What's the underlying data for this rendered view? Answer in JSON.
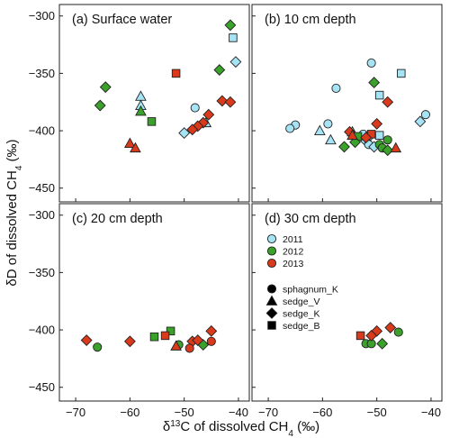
{
  "chart_data": {
    "type": "scatter",
    "x_axis": {
      "label_prefix": "δ",
      "label_sup": "13",
      "label_main": "C of dissolved CH",
      "label_sub": "4",
      "label_suffix": " (‰)",
      "range": [
        -73,
        -38
      ],
      "ticks": [
        -70,
        -60,
        -50,
        -40
      ]
    },
    "y_axis": {
      "label_main": "δD of dissolved CH",
      "label_sub": "4",
      "label_suffix": " (‰)",
      "range": [
        -462,
        -290
      ],
      "ticks": [
        -450,
        -400,
        -350,
        -300
      ]
    },
    "grid": false,
    "year_colors": {
      "2011": "#a6e4f5",
      "2012": "#3aa12a",
      "2013": "#d93a1c"
    },
    "legend": {
      "placement": "panel-d top-left",
      "years": [
        "2011",
        "2012",
        "2013"
      ],
      "site_types": [
        {
          "label": "sphagnum_K",
          "shape": "circle"
        },
        {
          "label": "sedge_V",
          "shape": "triangle"
        },
        {
          "label": "sedge_K",
          "shape": "diamond"
        },
        {
          "label": "sedge_B",
          "shape": "square"
        }
      ]
    },
    "panels": [
      {
        "id": "a",
        "title": "(a) Surface water",
        "points": [
          {
            "x": -41,
            "y": -319,
            "year": "2011",
            "shape": "square"
          },
          {
            "x": -40.5,
            "y": -340,
            "year": "2011",
            "shape": "diamond"
          },
          {
            "x": -58,
            "y": -370,
            "year": "2011",
            "shape": "triangle"
          },
          {
            "x": -58,
            "y": -378,
            "year": "2011",
            "shape": "triangle"
          },
          {
            "x": -48,
            "y": -380,
            "year": "2011",
            "shape": "circle"
          },
          {
            "x": -46,
            "y": -393,
            "year": "2011",
            "shape": "triangle"
          },
          {
            "x": -50,
            "y": -402,
            "year": "2011",
            "shape": "diamond"
          },
          {
            "x": -41.5,
            "y": -308,
            "year": "2012",
            "shape": "diamond"
          },
          {
            "x": -43.5,
            "y": -347,
            "year": "2012",
            "shape": "diamond"
          },
          {
            "x": -64.5,
            "y": -362,
            "year": "2012",
            "shape": "diamond"
          },
          {
            "x": -65.5,
            "y": -378,
            "year": "2012",
            "shape": "diamond"
          },
          {
            "x": -58,
            "y": -383,
            "year": "2012",
            "shape": "triangle"
          },
          {
            "x": -56,
            "y": -392,
            "year": "2012",
            "shape": "square"
          },
          {
            "x": -51.5,
            "y": -350,
            "year": "2013",
            "shape": "square"
          },
          {
            "x": -43,
            "y": -374,
            "year": "2013",
            "shape": "diamond"
          },
          {
            "x": -41.5,
            "y": -375,
            "year": "2013",
            "shape": "diamond"
          },
          {
            "x": -45.5,
            "y": -386,
            "year": "2013",
            "shape": "diamond"
          },
          {
            "x": -46.5,
            "y": -393,
            "year": "2013",
            "shape": "diamond"
          },
          {
            "x": -47.5,
            "y": -396,
            "year": "2013",
            "shape": "diamond"
          },
          {
            "x": -48.5,
            "y": -399,
            "year": "2013",
            "shape": "diamond"
          },
          {
            "x": -60,
            "y": -411,
            "year": "2013",
            "shape": "triangle"
          },
          {
            "x": -59,
            "y": -415,
            "year": "2013",
            "shape": "triangle"
          }
        ]
      },
      {
        "id": "b",
        "title": "(b) 10 cm depth",
        "points": [
          {
            "x": -51,
            "y": -341,
            "year": "2011",
            "shape": "circle"
          },
          {
            "x": -45.5,
            "y": -350,
            "year": "2011",
            "shape": "square"
          },
          {
            "x": -57.5,
            "y": -363,
            "year": "2011",
            "shape": "circle"
          },
          {
            "x": -49.5,
            "y": -369,
            "year": "2011",
            "shape": "square"
          },
          {
            "x": -41,
            "y": -386,
            "year": "2011",
            "shape": "circle"
          },
          {
            "x": -42,
            "y": -392,
            "year": "2011",
            "shape": "diamond"
          },
          {
            "x": -59,
            "y": -394,
            "year": "2011",
            "shape": "circle"
          },
          {
            "x": -65,
            "y": -395,
            "year": "2011",
            "shape": "circle"
          },
          {
            "x": -66,
            "y": -398,
            "year": "2011",
            "shape": "circle"
          },
          {
            "x": -60.5,
            "y": -400,
            "year": "2011",
            "shape": "triangle"
          },
          {
            "x": -54.5,
            "y": -401,
            "year": "2011",
            "shape": "triangle"
          },
          {
            "x": -52.5,
            "y": -403,
            "year": "2011",
            "shape": "circle"
          },
          {
            "x": -51.5,
            "y": -405,
            "year": "2011",
            "shape": "circle"
          },
          {
            "x": -49.5,
            "y": -404,
            "year": "2011",
            "shape": "square"
          },
          {
            "x": -58.5,
            "y": -408,
            "year": "2011",
            "shape": "triangle"
          },
          {
            "x": -52,
            "y": -409,
            "year": "2011",
            "shape": "diamond"
          },
          {
            "x": -51.5,
            "y": -412,
            "year": "2011",
            "shape": "circle"
          },
          {
            "x": -50.5,
            "y": -414,
            "year": "2011",
            "shape": "diamond"
          },
          {
            "x": -50.5,
            "y": -358,
            "year": "2012",
            "shape": "diamond"
          },
          {
            "x": -53.5,
            "y": -405,
            "year": "2012",
            "shape": "square"
          },
          {
            "x": -48,
            "y": -408,
            "year": "2012",
            "shape": "circle"
          },
          {
            "x": -54,
            "y": -410,
            "year": "2012",
            "shape": "diamond"
          },
          {
            "x": -49.5,
            "y": -412,
            "year": "2012",
            "shape": "circle"
          },
          {
            "x": -56,
            "y": -414,
            "year": "2012",
            "shape": "diamond"
          },
          {
            "x": -49,
            "y": -415,
            "year": "2012",
            "shape": "circle"
          },
          {
            "x": -48,
            "y": -417,
            "year": "2012",
            "shape": "diamond"
          },
          {
            "x": -48,
            "y": -375,
            "year": "2013",
            "shape": "diamond"
          },
          {
            "x": -50,
            "y": -394,
            "year": "2013",
            "shape": "diamond"
          },
          {
            "x": -55,
            "y": -401,
            "year": "2013",
            "shape": "diamond"
          },
          {
            "x": -51,
            "y": -403,
            "year": "2013",
            "shape": "square"
          },
          {
            "x": -54.5,
            "y": -404,
            "year": "2013",
            "shape": "triangle"
          },
          {
            "x": -52,
            "y": -406,
            "year": "2013",
            "shape": "diamond"
          },
          {
            "x": -46.5,
            "y": -415,
            "year": "2013",
            "shape": "triangle"
          }
        ]
      },
      {
        "id": "c",
        "title": "(c) 20 cm depth",
        "points": [
          {
            "x": -52.5,
            "y": -401,
            "year": "2012",
            "shape": "square"
          },
          {
            "x": -55.5,
            "y": -406,
            "year": "2012",
            "shape": "square"
          },
          {
            "x": -51,
            "y": -413,
            "year": "2012",
            "shape": "circle"
          },
          {
            "x": -46.5,
            "y": -413,
            "year": "2012",
            "shape": "diamond"
          },
          {
            "x": -66,
            "y": -415,
            "year": "2012",
            "shape": "circle"
          },
          {
            "x": -45,
            "y": -401,
            "year": "2013",
            "shape": "diamond"
          },
          {
            "x": -53.5,
            "y": -405,
            "year": "2013",
            "shape": "square"
          },
          {
            "x": -68,
            "y": -409,
            "year": "2013",
            "shape": "diamond"
          },
          {
            "x": -60,
            "y": -410,
            "year": "2013",
            "shape": "diamond"
          },
          {
            "x": -48.5,
            "y": -410,
            "year": "2013",
            "shape": "diamond"
          },
          {
            "x": -47.5,
            "y": -409,
            "year": "2013",
            "shape": "diamond"
          },
          {
            "x": -45,
            "y": -410,
            "year": "2013",
            "shape": "circle"
          },
          {
            "x": -51.5,
            "y": -414,
            "year": "2013",
            "shape": "triangle"
          },
          {
            "x": -49,
            "y": -416,
            "year": "2013",
            "shape": "circle"
          }
        ]
      },
      {
        "id": "d",
        "title": "(d) 30 cm depth",
        "points": [
          {
            "x": -46,
            "y": -402,
            "year": "2012",
            "shape": "circle"
          },
          {
            "x": -52,
            "y": -412,
            "year": "2012",
            "shape": "circle"
          },
          {
            "x": -51,
            "y": -412,
            "year": "2012",
            "shape": "circle"
          },
          {
            "x": -49,
            "y": -412,
            "year": "2012",
            "shape": "diamond"
          },
          {
            "x": -53,
            "y": -405,
            "year": "2013",
            "shape": "square"
          },
          {
            "x": -50,
            "y": -401,
            "year": "2013",
            "shape": "diamond"
          },
          {
            "x": -51,
            "y": -405,
            "year": "2013",
            "shape": "diamond"
          },
          {
            "x": -47.5,
            "y": -398,
            "year": "2013",
            "shape": "diamond"
          }
        ]
      }
    ]
  }
}
